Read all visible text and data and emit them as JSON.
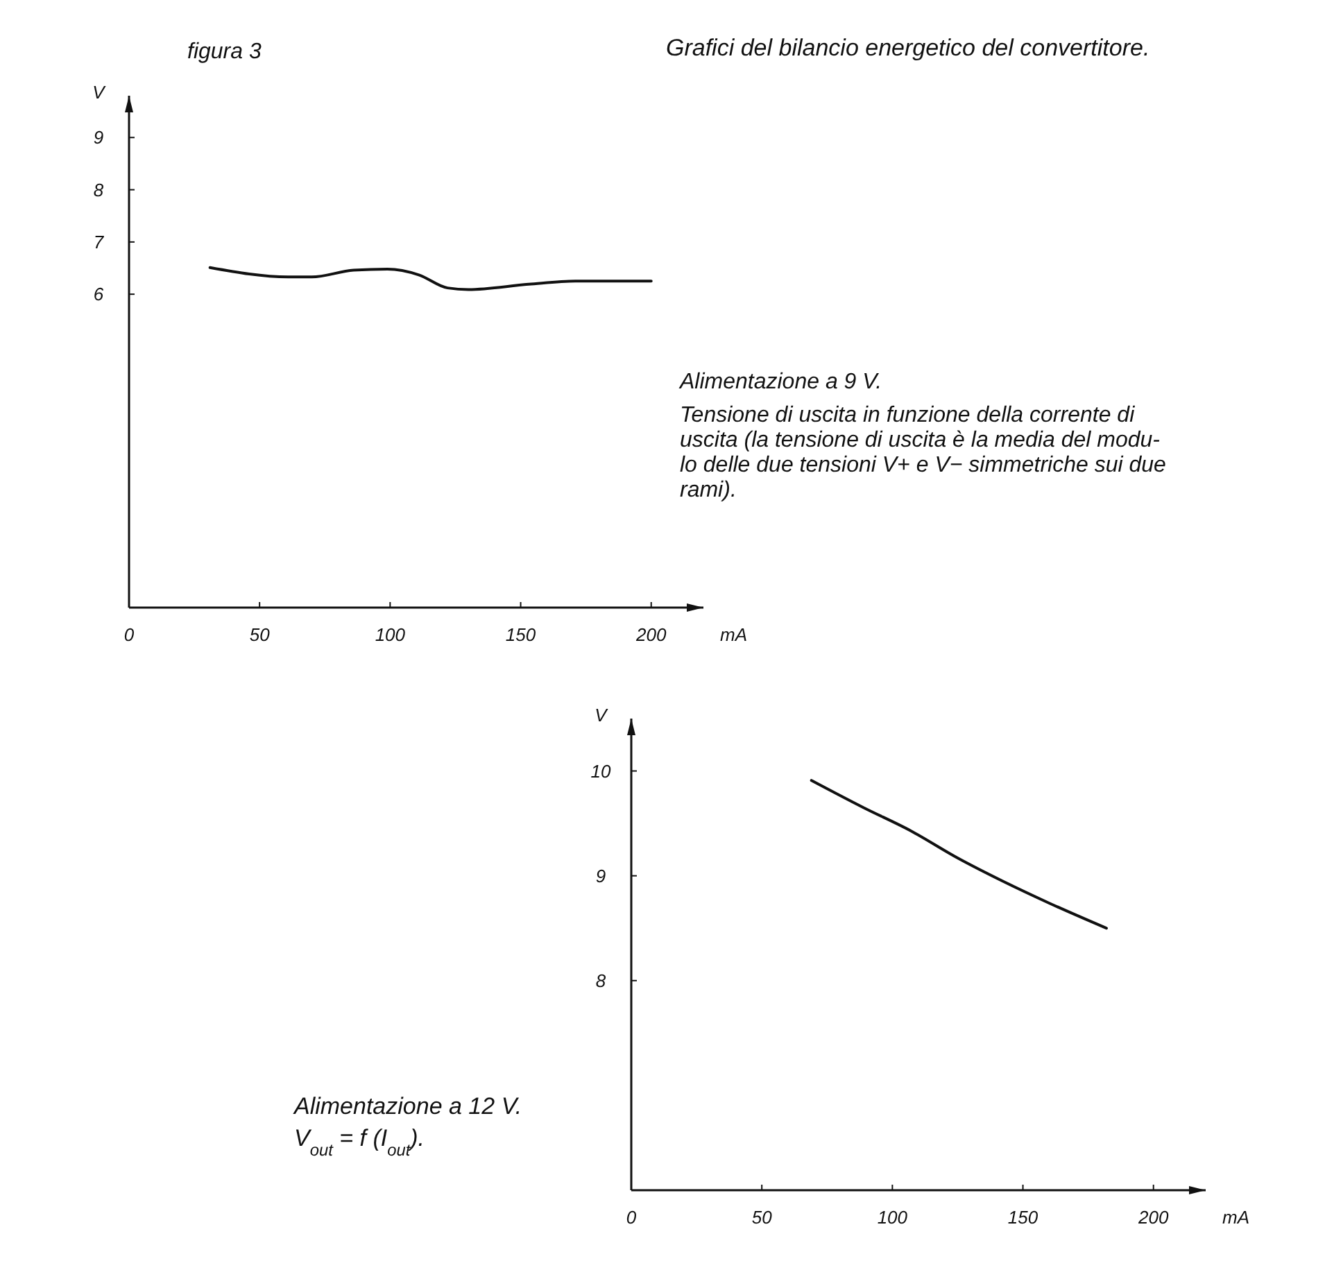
{
  "chart_data": [
    {
      "type": "line",
      "title": "Grafici del bilancio energetico del convertitore.",
      "xlabel": "mA",
      "ylabel": "V",
      "annotations": [
        "figura 3",
        "Alimentazione a 9 V.",
        "Tensione di uscita in funzione della corrente di",
        "uscita (la tensione di uscita è la media del modu-",
        "lo delle due tensioni V+ e V− simmetriche sui due",
        "rami)."
      ],
      "xlim": [
        0,
        220
      ],
      "xticks": [
        0,
        50,
        100,
        150,
        200
      ],
      "ylim": [
        0,
        9.8
      ],
      "yticks": [
        6,
        7,
        8,
        9
      ],
      "grid": false,
      "marker": "none",
      "line_style": "solid",
      "series": [
        {
          "color": "#111111",
          "x": [
            31,
            61,
            70,
            86,
            99,
            111,
            122,
            130,
            153,
            171,
            200
          ],
          "values": [
            6.51,
            6.33,
            6.33,
            6.46,
            6.48,
            6.37,
            6.12,
            6.09,
            6.19,
            6.25,
            6.25
          ]
        }
      ]
    },
    {
      "type": "line",
      "xlabel": "mA",
      "ylabel": "V",
      "annotations": [
        "Alimentazione a 12 V.",
        "V$_{out}$ = f (I$_{out}$)."
      ],
      "xlim": [
        0,
        220
      ],
      "xticks": [
        0,
        50,
        100,
        150,
        200
      ],
      "ylim": [
        6,
        10.5
      ],
      "yticks": [
        8,
        9,
        10
      ],
      "grid": false,
      "marker": "none",
      "line_style": "solid",
      "series": [
        {
          "color": "#111111",
          "x": [
            69,
            89,
            107,
            125,
            143,
            160,
            182
          ],
          "values": [
            9.91,
            9.65,
            9.43,
            9.17,
            8.94,
            8.74,
            8.5
          ]
        }
      ]
    }
  ]
}
